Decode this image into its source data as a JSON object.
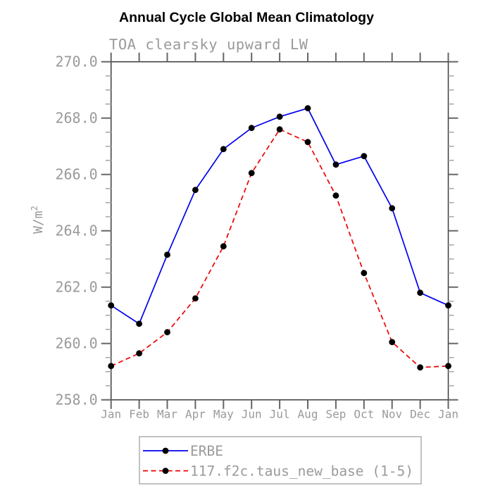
{
  "page": {
    "background": "#ffffff"
  },
  "chart_data": {
    "type": "line",
    "title": "Annual Cycle Global Mean Climatology",
    "subtitle": "TOA clearsky upward LW",
    "ylabel": {
      "text": "W/m",
      "superscript": "2"
    },
    "x_categories": [
      "Jan",
      "Feb",
      "Mar",
      "Apr",
      "May",
      "Jun",
      "Jul",
      "Aug",
      "Sep",
      "Oct",
      "Nov",
      "Dec",
      "Jan"
    ],
    "ylim": [
      258.0,
      270.0
    ],
    "ytick_major_step": 2.0,
    "ytick_minor_step": 0.5,
    "ytick_labels": [
      "270.0",
      "268.0",
      "266.0",
      "264.0",
      "262.0",
      "260.0",
      "258.0"
    ],
    "grid": false,
    "legend_position": "bottom",
    "series": [
      {
        "name": "ERBE",
        "color": "#0000ee",
        "line_style": "solid",
        "marker": "filled-circle",
        "marker_color": "#000000",
        "values": [
          261.35,
          260.7,
          263.15,
          265.45,
          266.9,
          267.65,
          268.05,
          268.35,
          266.35,
          266.65,
          264.8,
          261.8,
          261.35
        ]
      },
      {
        "name": "117.f2c.taus_new_base (1-5)",
        "color": "#ee0000",
        "line_style": "dashed",
        "marker": "filled-circle",
        "marker_color": "#000000",
        "values": [
          259.2,
          259.65,
          260.4,
          261.6,
          263.45,
          266.05,
          267.6,
          267.15,
          265.25,
          262.5,
          260.05,
          259.15,
          259.2
        ]
      }
    ]
  },
  "colors": {
    "axis_frame": "#3a3a3a",
    "tick_major": "#666666",
    "tick_minor": "#aaaaaa",
    "label_text": "#9a9a9a",
    "title_text": "#000000",
    "legend_border": "#999999"
  }
}
